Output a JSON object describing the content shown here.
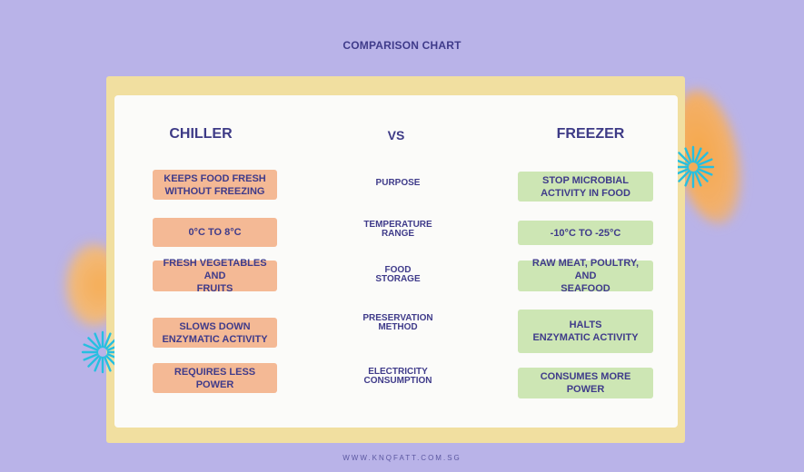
{
  "page": {
    "title": "COMPARISON CHART",
    "footer": "WWW.KNQFATT.COM.SG"
  },
  "headings": {
    "left": "CHILLER",
    "middle": "VS",
    "right": "FREEZER"
  },
  "rows": [
    {
      "chiller": "KEEPS FOOD FRESH\nWITHOUT FREEZING",
      "criterion": "PURPOSE",
      "freezer": "STOP MICROBIAL\nACTIVITY IN FOOD"
    },
    {
      "chiller": "0°C TO 8°C",
      "criterion": "TEMPERATURE\nRANGE",
      "freezer": "-10°C TO -25°C"
    },
    {
      "chiller": "FRESH VEGETABLES AND\nFRUITS",
      "criterion": "FOOD\nSTORAGE",
      "freezer": "RAW MEAT, POULTRY, AND\nSEAFOOD"
    },
    {
      "chiller": "SLOWS DOWN\nENZYMATIC ACTIVITY",
      "criterion": "PRESERVATION\nMETHOD",
      "freezer": "HALTS\nENZYMATIC ACTIVITY"
    },
    {
      "chiller": "REQUIRES LESS POWER",
      "criterion": "ELECTRICITY\nCONSUMPTION",
      "freezer": "CONSUMES MORE POWER"
    }
  ],
  "colors": {
    "background": "#b9b3e8",
    "frame": "#f1dfa0",
    "card": "#fbfbf9",
    "chiller_pill": "#f4b995",
    "freezer_pill": "#cde6b4",
    "text": "#3d3a86",
    "burst": "#26bfe0",
    "blob": "#f6a84a"
  },
  "decorations": [
    "orange-blob",
    "cyan-burst-icon"
  ]
}
